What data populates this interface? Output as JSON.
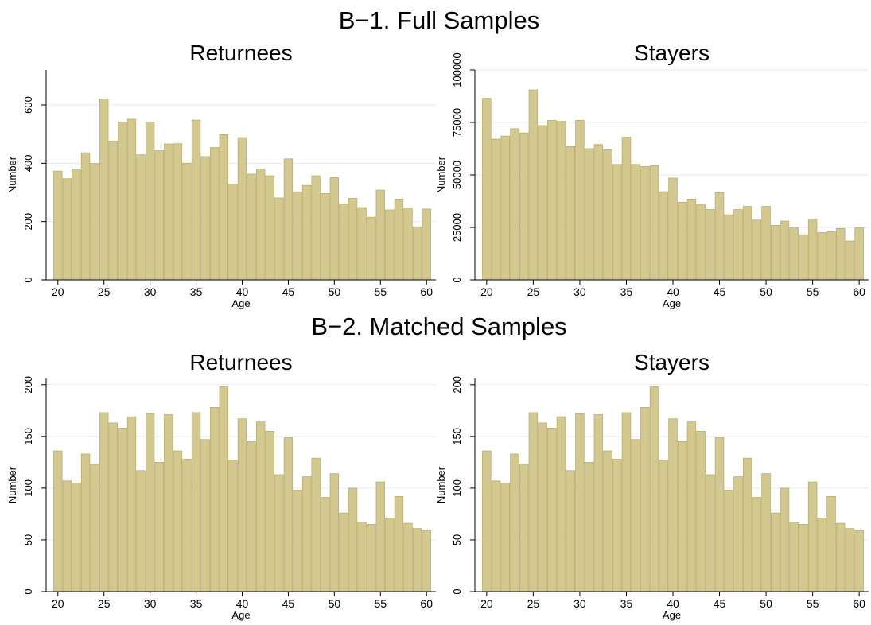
{
  "figure": {
    "sections": [
      {
        "title": "B−1. Full Samples"
      },
      {
        "title": "B−2. Matched Samples"
      }
    ]
  },
  "style": {
    "bar_fill": "#d3c98f",
    "bar_stroke": "#b8ad72",
    "grid_color": "#eaeaea"
  },
  "chart_data": [
    {
      "type": "bar",
      "section": "B−1. Full Samples",
      "title": "Returnees",
      "xlabel": "Age",
      "ylabel": "Number",
      "x": [
        20,
        21,
        22,
        23,
        24,
        25,
        26,
        27,
        28,
        29,
        30,
        31,
        32,
        33,
        34,
        35,
        36,
        37,
        38,
        39,
        40,
        41,
        42,
        43,
        44,
        45,
        46,
        47,
        48,
        49,
        50,
        51,
        52,
        53,
        54,
        55,
        56,
        57,
        58,
        59,
        60
      ],
      "values": [
        373,
        347,
        380,
        436,
        399,
        620,
        476,
        541,
        551,
        429,
        541,
        443,
        466,
        467,
        400,
        548,
        423,
        454,
        498,
        329,
        488,
        363,
        380,
        357,
        281,
        415,
        302,
        324,
        357,
        296,
        351,
        261,
        280,
        248,
        215,
        308,
        240,
        277,
        247,
        182,
        243
      ],
      "xticks": [
        20,
        25,
        30,
        35,
        40,
        45,
        50,
        55,
        60
      ],
      "yticks": [
        0,
        200,
        400,
        600
      ],
      "ylim": [
        0,
        720
      ],
      "grid": true
    },
    {
      "type": "bar",
      "section": "B−1. Full Samples",
      "title": "Stayers",
      "xlabel": "Age",
      "ylabel": "Number",
      "x": [
        20,
        21,
        22,
        23,
        24,
        25,
        26,
        27,
        28,
        29,
        30,
        31,
        32,
        33,
        34,
        35,
        36,
        37,
        38,
        39,
        40,
        41,
        42,
        43,
        44,
        45,
        46,
        47,
        48,
        49,
        50,
        51,
        52,
        53,
        54,
        55,
        56,
        57,
        58,
        59,
        60
      ],
      "values": [
        86500,
        67000,
        68500,
        72000,
        70000,
        90500,
        73500,
        76000,
        75500,
        63500,
        76000,
        62500,
        64500,
        62000,
        55000,
        68000,
        55000,
        54000,
        54500,
        42000,
        48500,
        37000,
        38500,
        36000,
        33500,
        41500,
        31000,
        33500,
        35000,
        28500,
        35000,
        26000,
        28000,
        25000,
        21500,
        29000,
        22500,
        23000,
        24500,
        18500,
        25000
      ],
      "xticks": [
        20,
        25,
        30,
        35,
        40,
        45,
        50,
        55,
        60
      ],
      "yticks": [
        0,
        25000,
        50000,
        75000,
        100000
      ],
      "ylim": [
        0,
        100000
      ],
      "grid": true
    },
    {
      "type": "bar",
      "section": "B−2. Matched Samples",
      "title": "Returnees",
      "xlabel": "Age",
      "ylabel": "Number",
      "x": [
        20,
        21,
        22,
        23,
        24,
        25,
        26,
        27,
        28,
        29,
        30,
        31,
        32,
        33,
        34,
        35,
        36,
        37,
        38,
        39,
        40,
        41,
        42,
        43,
        44,
        45,
        46,
        47,
        48,
        49,
        50,
        51,
        52,
        53,
        54,
        55,
        56,
        57,
        58,
        59,
        60
      ],
      "values": [
        136,
        107,
        105,
        133,
        123,
        173,
        163,
        158,
        169,
        117,
        172,
        125,
        171,
        136,
        128,
        173,
        147,
        178,
        198,
        127,
        167,
        145,
        164,
        155,
        113,
        149,
        98,
        111,
        129,
        91,
        114,
        76,
        100,
        67,
        65,
        106,
        71,
        92,
        66,
        61,
        59
      ],
      "xticks": [
        20,
        25,
        30,
        35,
        40,
        45,
        50,
        55,
        60
      ],
      "yticks": [
        0,
        50,
        100,
        150,
        200
      ],
      "ylim": [
        0,
        206
      ],
      "grid": true
    },
    {
      "type": "bar",
      "section": "B−2. Matched Samples",
      "title": "Stayers",
      "xlabel": "Age",
      "ylabel": "Number",
      "x": [
        20,
        21,
        22,
        23,
        24,
        25,
        26,
        27,
        28,
        29,
        30,
        31,
        32,
        33,
        34,
        35,
        36,
        37,
        38,
        39,
        40,
        41,
        42,
        43,
        44,
        45,
        46,
        47,
        48,
        49,
        50,
        51,
        52,
        53,
        54,
        55,
        56,
        57,
        58,
        59,
        60
      ],
      "values": [
        136,
        107,
        105,
        133,
        123,
        173,
        163,
        158,
        169,
        117,
        172,
        125,
        171,
        136,
        128,
        173,
        147,
        178,
        198,
        127,
        167,
        145,
        164,
        155,
        113,
        149,
        98,
        111,
        129,
        91,
        114,
        76,
        100,
        67,
        65,
        106,
        71,
        92,
        66,
        61,
        59
      ],
      "xticks": [
        20,
        25,
        30,
        35,
        40,
        45,
        50,
        55,
        60
      ],
      "yticks": [
        0,
        50,
        100,
        150,
        200
      ],
      "ylim": [
        0,
        206
      ],
      "grid": true
    }
  ]
}
